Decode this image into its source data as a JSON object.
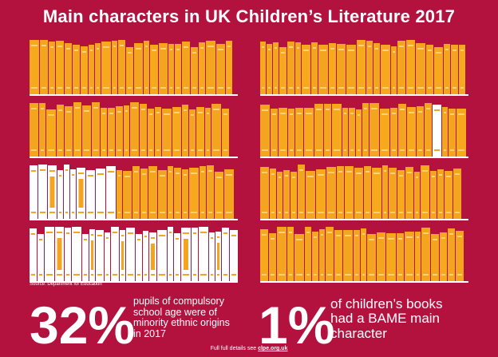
{
  "title": "Main characters in UK Children’s Literature 2017",
  "source": "Source: Department for Education",
  "stats": [
    {
      "number": "32%",
      "lines": [
        "pupils of compulsory",
        "school age were of",
        "minority ethnic origins",
        "in 2017"
      ]
    },
    {
      "number": "1%",
      "lines": [
        "of children’s books",
        "had a BAME main",
        "character"
      ]
    }
  ],
  "footer": {
    "prefix": "Full full details see ",
    "link": "clpe.org.uk"
  },
  "colors": {
    "background": "#b3123f",
    "book": "#f4a51f",
    "book_alt": "#f7a91d",
    "white_book": "#ffffff",
    "shelf": "#ffffff"
  },
  "books": {
    "left_bookcase": {
      "total_books_shown": 128,
      "white_share_percent": 32
    },
    "right_bookcase": {
      "total_books_shown": 128,
      "white_share_percent": 1
    }
  }
}
